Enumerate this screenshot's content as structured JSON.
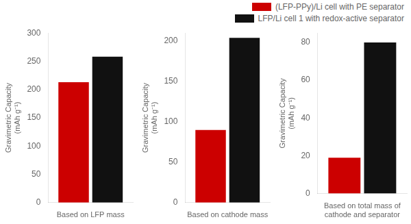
{
  "chart_data": [
    {
      "type": "bar",
      "x_label": "Based on LFP mass",
      "y_label": "Gravimetric Capacity\n(mAh g⁻¹)",
      "categories": [
        null
      ],
      "series": [
        {
          "name": "(LFP-PPy)/Li cell with PE separator",
          "color": "#cc0000",
          "values": [
            213
          ]
        },
        {
          "name": "LFP/Li cell 1 with redox-active separator",
          "color": "#111111",
          "values": [
            258
          ]
        }
      ],
      "ylim": [
        0,
        300
      ],
      "yticks": [
        0,
        50,
        100,
        150,
        200,
        250,
        300
      ],
      "grid": false,
      "tick_labels": "y",
      "legend": "upper right"
    },
    {
      "type": "bar",
      "x_label": "Based on cathode mass",
      "y_label": "Gravimetric Capacity\n(mAh g⁻¹)",
      "categories": [
        null
      ],
      "series": [
        {
          "color": "#cc0000",
          "values": [
            90
          ]
        },
        {
          "color": "#111111",
          "values": [
            204
          ]
        }
      ],
      "ylim": [
        0,
        210
      ],
      "yticks": [
        0,
        50,
        100,
        150,
        200
      ],
      "grid": false,
      "tick_labels": "y"
    },
    {
      "type": "bar",
      "x_label": "Based on total mass of\ncathode and separator",
      "y_label": "Gravimetric Capacity\n(mAh g⁻¹)",
      "categories": [
        null
      ],
      "series": [
        {
          "color": "#cc0000",
          "values": [
            19
          ]
        },
        {
          "color": "#111111",
          "values": [
            80
          ]
        }
      ],
      "ylim": [
        0,
        85
      ],
      "yticks": [
        0,
        20,
        40,
        60,
        80
      ],
      "grid": false,
      "tick_labels": "y"
    }
  ]
}
